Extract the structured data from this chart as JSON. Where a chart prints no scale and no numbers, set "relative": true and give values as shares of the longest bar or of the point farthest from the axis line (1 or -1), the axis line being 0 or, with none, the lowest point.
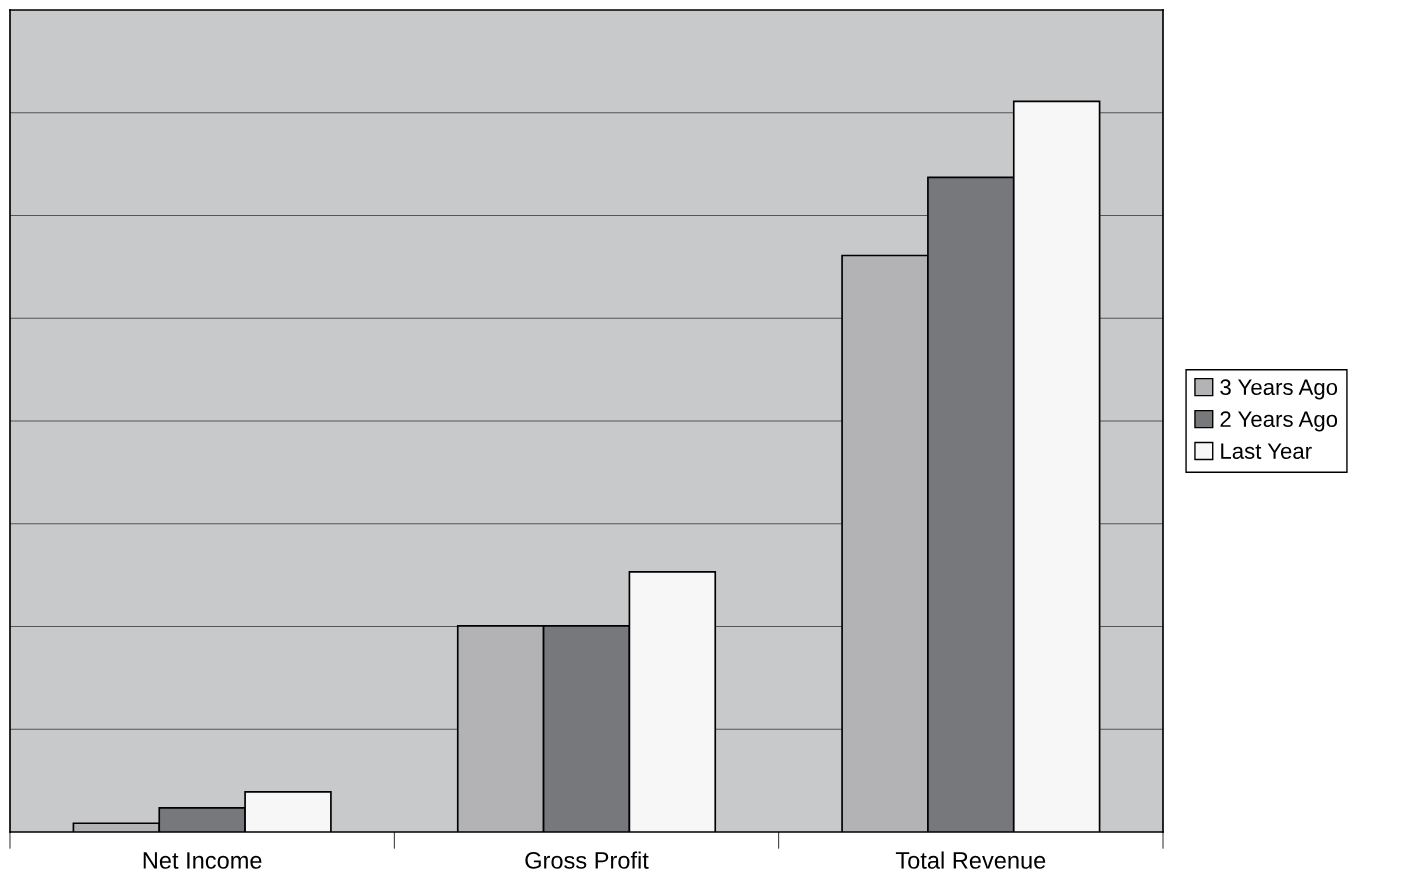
{
  "chart_data": {
    "type": "bar",
    "relative": true,
    "categories": [
      "Net Income",
      "Gross Profit",
      "Total Revenue"
    ],
    "series": [
      {
        "name": "3 Years Ago",
        "color": "#b3b3b5",
        "values": [
          0.012,
          0.282,
          0.789
        ]
      },
      {
        "name": "2 Years Ago",
        "color": "#77787c",
        "values": [
          0.033,
          0.282,
          0.896
        ]
      },
      {
        "name": "Last Year",
        "color": "#f7f7f7",
        "values": [
          0.055,
          0.356,
          1
        ]
      }
    ],
    "grid": "y",
    "legend": "right"
  }
}
